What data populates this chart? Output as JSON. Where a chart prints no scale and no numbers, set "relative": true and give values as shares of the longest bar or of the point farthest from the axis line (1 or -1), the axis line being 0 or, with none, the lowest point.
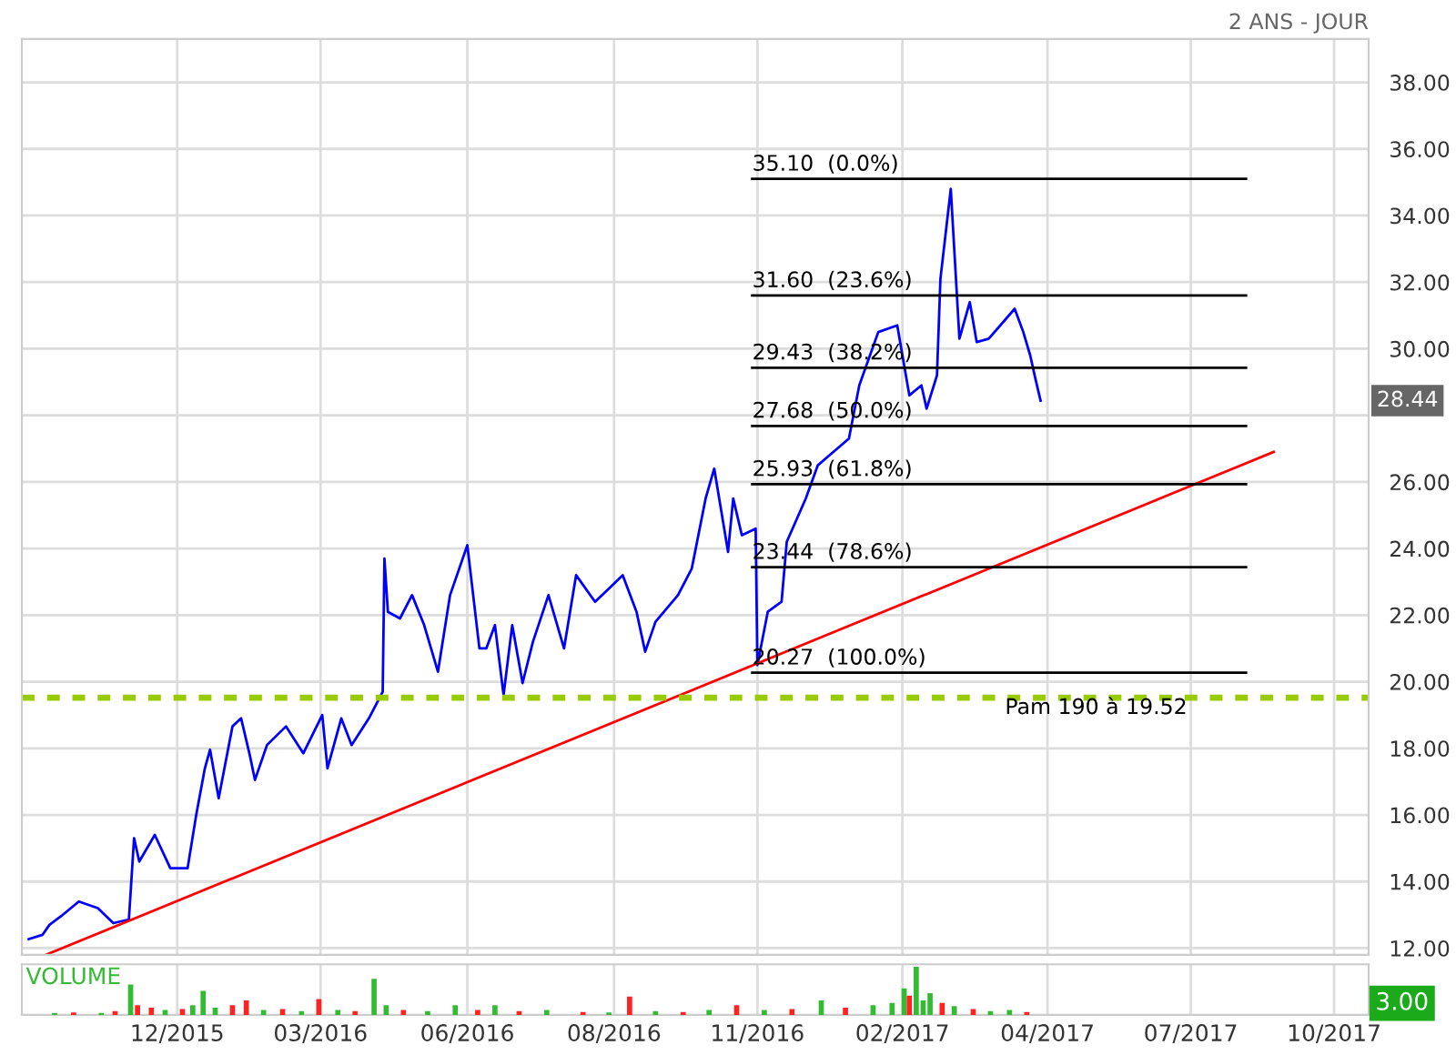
{
  "chart_data": [
    {
      "type": "line",
      "series": [
        {
          "color": "#0000ff",
          "x": [
            "2015-09-06",
            "2015-09-14",
            "2015-09-18",
            "2015-09-25",
            "2015-10-05",
            "2015-10-16",
            "2015-10-25",
            "2015-11-03",
            "2015-11-06",
            "2015-11-09",
            "2015-11-18",
            "2015-11-27",
            "2015-12-07",
            "2015-12-12",
            "2015-12-17",
            "2015-12-20",
            "2015-12-25",
            "2016-01-02",
            "2016-01-07",
            "2016-01-12",
            "2016-01-15",
            "2016-01-22",
            "2016-02-02",
            "2016-02-12",
            "2016-02-23",
            "2016-02-26",
            "2016-03-05",
            "2016-03-11",
            "2016-03-21",
            "2016-03-29",
            "2016-03-30",
            "2016-04-01",
            "2016-04-08",
            "2016-04-15",
            "2016-04-22",
            "2016-04-30",
            "2016-05-07",
            "2016-05-17",
            "2016-05-24",
            "2016-05-28",
            "2016-06-02",
            "2016-06-07",
            "2016-06-12",
            "2016-06-18",
            "2016-06-24",
            "2016-07-03",
            "2016-07-12",
            "2016-07-19",
            "2016-07-30",
            "2016-08-15",
            "2016-08-23",
            "2016-08-28",
            "2016-09-03",
            "2016-09-16",
            "2016-09-24",
            "2016-10-02",
            "2016-10-07",
            "2016-10-15",
            "2016-10-18",
            "2016-10-23",
            "2016-10-31",
            "2016-11-01",
            "2016-11-07",
            "2016-11-15",
            "2016-11-18",
            "2016-11-29",
            "2016-12-06",
            "2016-12-24",
            "2016-12-30",
            "2017-01-10",
            "2017-01-21",
            "2017-01-28",
            "2017-02-04",
            "2017-02-07",
            "2017-02-13",
            "2017-02-15",
            "2017-02-21",
            "2017-02-23",
            "2017-02-26",
            "2017-03-04",
            "2017-03-08",
            "2017-03-15",
            "2017-03-25",
            "2017-03-30",
            "2017-04-04",
            "2017-04-08",
            "2017-04-11",
            "2017-04-14"
          ],
          "values": [
            12.27,
            12.4,
            12.7,
            12.97,
            13.4,
            13.2,
            12.75,
            12.86,
            15.3,
            14.6,
            15.4,
            14.4,
            14.4,
            16.0,
            17.4,
            17.96,
            16.5,
            18.66,
            18.9,
            17.8,
            17.05,
            18.1,
            18.66,
            17.85,
            19.0,
            17.4,
            18.9,
            18.1,
            18.9,
            19.7,
            23.7,
            22.1,
            21.9,
            22.6,
            21.7,
            20.3,
            22.6,
            24.1,
            21.0,
            21.0,
            21.7,
            19.6,
            21.7,
            19.96,
            21.2,
            22.6,
            21.0,
            23.2,
            22.4,
            23.2,
            22.1,
            20.9,
            21.8,
            22.6,
            23.4,
            25.5,
            26.4,
            23.9,
            25.5,
            24.4,
            24.6,
            20.5,
            22.1,
            22.4,
            24.2,
            25.5,
            26.5,
            27.3,
            28.9,
            30.5,
            30.7,
            28.6,
            28.9,
            28.2,
            29.2,
            32.1,
            34.8,
            33.0,
            30.3,
            31.4,
            30.2,
            30.3,
            30.9,
            31.2,
            30.5,
            29.8,
            29.1,
            28.44
          ]
        },
        {
          "color": "#ff0000",
          "x": [
            "2015-09-16",
            "2017-08-27"
          ],
          "values": [
            11.8,
            26.9
          ]
        },
        {
          "color": "#000000",
          "x": [
            "2016-10-29",
            "2017-08-11"
          ],
          "values": [
            35.1,
            35.1
          ]
        },
        {
          "color": "#000000",
          "x": [
            "2016-10-29",
            "2017-08-11"
          ],
          "values": [
            31.6,
            31.6
          ]
        },
        {
          "color": "#000000",
          "x": [
            "2016-10-29",
            "2017-08-11"
          ],
          "values": [
            29.43,
            29.43
          ]
        },
        {
          "color": "#000000",
          "x": [
            "2016-10-29",
            "2017-08-11"
          ],
          "values": [
            27.68,
            27.68
          ]
        },
        {
          "color": "#000000",
          "x": [
            "2016-10-29",
            "2017-08-11"
          ],
          "values": [
            25.93,
            25.93
          ]
        },
        {
          "color": "#000000",
          "x": [
            "2016-10-29",
            "2017-08-11"
          ],
          "values": [
            23.44,
            23.44
          ]
        },
        {
          "color": "#000000",
          "x": [
            "2016-10-29",
            "2017-08-11"
          ],
          "values": [
            20.27,
            20.27
          ]
        }
      ],
      "xlim": [
        "2015-09-02",
        "2017-10-21"
      ],
      "xticks": [
        {
          "value": "2015-12-01",
          "label": null
        },
        {
          "value": "2016-02-22",
          "label": null
        },
        {
          "value": "2016-05-17",
          "label": null
        },
        {
          "value": "2016-08-10",
          "label": null
        },
        {
          "value": "2016-11-01",
          "label": null
        },
        {
          "value": "2017-01-24",
          "label": null
        },
        {
          "value": "2017-04-18",
          "label": null
        },
        {
          "value": "2017-07-10",
          "label": null
        },
        {
          "value": "2017-10-01",
          "label": null
        }
      ],
      "ylim": [
        11.8,
        39.3
      ],
      "yticks": [
        {
          "value": 12,
          "label": "12.00"
        },
        {
          "value": 14,
          "label": "14.00"
        },
        {
          "value": 16,
          "label": "16.00"
        },
        {
          "value": 18,
          "label": "18.00"
        },
        {
          "value": 20,
          "label": "20.00"
        },
        {
          "value": 22,
          "label": "22.00"
        },
        {
          "value": 24,
          "label": "24.00"
        },
        {
          "value": 26,
          "label": "26.00"
        },
        {
          "value": 28,
          "label": null
        },
        {
          "value": 30,
          "label": "30.00"
        },
        {
          "value": 32,
          "label": "32.00"
        },
        {
          "value": 34,
          "label": "34.00"
        },
        {
          "value": 36,
          "label": "36.00"
        },
        {
          "value": 38,
          "label": "38.00"
        }
      ],
      "grid": true,
      "tick_labels": "y",
      "ref_lines": [
        {
          "axis": "y",
          "value": 19.52,
          "label": "Pam 190 à 19.52",
          "color": "#99cc00",
          "line_style": "dotted"
        }
      ],
      "annotations": [
        "2 ANS - JOUR",
        {
          "text": "35.10  (0.0%)",
          "x": "2016-10-29",
          "y": 35.1
        },
        {
          "text": "31.60  (23.6%)",
          "x": "2016-10-29",
          "y": 31.6
        },
        {
          "text": "29.43  (38.2%)",
          "x": "2016-10-29",
          "y": 29.43
        },
        {
          "text": "27.68  (50.0%)",
          "x": "2016-10-29",
          "y": 27.68
        },
        {
          "text": "25.93  (61.8%)",
          "x": "2016-10-29",
          "y": 25.93
        },
        {
          "text": "23.44  (78.6%)",
          "x": "2016-10-29",
          "y": 23.44
        },
        {
          "text": "20.27  (100.0%)",
          "x": "2016-10-29",
          "y": 20.27
        },
        "28.44"
      ]
    },
    {
      "type": "bar",
      "title": "VOLUME",
      "relative": true,
      "x": [
        "2015-09-21",
        "2015-10-02",
        "2015-10-18",
        "2015-10-26",
        "2015-11-04",
        "2015-11-08",
        "2015-11-16",
        "2015-11-24",
        "2015-12-04",
        "2015-12-10",
        "2015-12-16",
        "2015-12-23",
        "2016-01-02",
        "2016-01-10",
        "2016-01-20",
        "2016-01-31",
        "2016-02-11",
        "2016-02-21",
        "2016-03-03",
        "2016-03-13",
        "2016-03-24",
        "2016-03-31",
        "2016-04-10",
        "2016-04-24",
        "2016-05-10",
        "2016-05-23",
        "2016-06-02",
        "2016-06-16",
        "2016-07-02",
        "2016-07-23",
        "2016-08-07",
        "2016-08-19",
        "2016-09-03",
        "2016-09-19",
        "2016-10-04",
        "2016-10-20",
        "2016-11-05",
        "2016-11-21",
        "2016-12-08",
        "2016-12-22",
        "2017-01-07",
        "2017-01-18",
        "2017-01-25",
        "2017-01-28",
        "2017-02-01",
        "2017-02-05",
        "2017-02-09",
        "2017-02-16",
        "2017-02-23",
        "2017-03-06",
        "2017-03-16",
        "2017-03-27",
        "2017-04-06"
      ],
      "values": [
        0.04,
        0.05,
        0.04,
        0.08,
        0.63,
        0.2,
        0.15,
        0.1,
        0.12,
        0.2,
        0.5,
        0.15,
        0.2,
        0.3,
        0.1,
        0.12,
        0.08,
        0.33,
        0.1,
        0.08,
        0.75,
        0.2,
        0.1,
        0.08,
        0.2,
        0.1,
        0.2,
        0.08,
        0.1,
        0.06,
        0.05,
        0.38,
        0.08,
        0.06,
        0.1,
        0.2,
        0.1,
        0.12,
        0.3,
        0.15,
        0.2,
        0.25,
        0.55,
        0.4,
        1.0,
        0.3,
        0.45,
        0.25,
        0.18,
        0.12,
        0.08,
        0.1,
        0.06
      ],
      "colors": [
        "#33bb33",
        "#ff2222",
        "#33bb33",
        "#ff2222",
        "#33bb33",
        "#ff2222",
        "#ff2222",
        "#33bb33",
        "#ff2222",
        "#33bb33",
        "#33bb33",
        "#33bb33",
        "#ff2222",
        "#ff2222",
        "#33bb33",
        "#ff2222",
        "#33bb33",
        "#ff2222",
        "#33bb33",
        "#ff2222",
        "#33bb33",
        "#33bb33",
        "#ff2222",
        "#33bb33",
        "#33bb33",
        "#ff2222",
        "#33bb33",
        "#ff2222",
        "#33bb33",
        "#ff2222",
        "#33bb33",
        "#ff2222",
        "#33bb33",
        "#ff2222",
        "#33bb33",
        "#ff2222",
        "#33bb33",
        "#ff2222",
        "#33bb33",
        "#ff2222",
        "#33bb33",
        "#33bb33",
        "#33bb33",
        "#ff2222",
        "#33bb33",
        "#33bb33",
        "#33bb33",
        "#ff2222",
        "#33bb33",
        "#ff2222",
        "#33bb33",
        "#33bb33",
        "#ff2222"
      ],
      "xlim": [
        "2015-09-02",
        "2017-10-21"
      ],
      "xticks": [
        {
          "value": "2015-12-01",
          "label": "12/2015"
        },
        {
          "value": "2016-02-22",
          "label": "03/2016"
        },
        {
          "value": "2016-05-17",
          "label": "06/2016"
        },
        {
          "value": "2016-08-10",
          "label": "08/2016"
        },
        {
          "value": "2016-11-01",
          "label": "11/2016"
        },
        {
          "value": "2017-01-24",
          "label": "02/2017"
        },
        {
          "value": "2017-04-18",
          "label": "04/2017"
        },
        {
          "value": "2017-07-10",
          "label": "07/2017"
        },
        {
          "value": "2017-10-01",
          "label": "10/2017"
        }
      ],
      "grid": "x",
      "tick_labels": "x",
      "annotations": [
        "3.00"
      ]
    }
  ]
}
